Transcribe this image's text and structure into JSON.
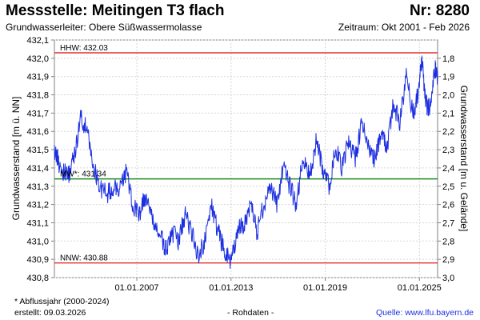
{
  "header": {
    "title": "Messstelle: Meitingen T3 flach",
    "station_number": "Nr: 8280",
    "aquifer": "Grundwasserleiter:   Obere Süßwassermolasse",
    "period": "Zeitraum: Okt 2001 - Feb 2026"
  },
  "footer": {
    "note": "* Abflussjahr (2000-2024)",
    "created": "erstellt:  09.03.2026",
    "data_kind": "- Rohdaten -",
    "source": "Quelle: www.lfu.bayern.de"
  },
  "chart_data": {
    "type": "line",
    "title": "",
    "xlabel": "",
    "ylabel": "Grundwasserstand [m ü. NN]",
    "ylabel_right": "Grundwasserstand [m u. Gelände]",
    "xlim": [
      "2001-10-01",
      "2026-02-28"
    ],
    "ylim": [
      430.8,
      432.1
    ],
    "ylim_right": [
      3.0,
      1.7
    ],
    "y_ticks": [
      "432,1",
      "432,0",
      "431,9",
      "431,8",
      "431,7",
      "431,6",
      "431,5",
      "431,4",
      "431,3",
      "431,2",
      "431,1",
      "431,0",
      "430,9",
      "430,8"
    ],
    "y_ticks_right": [
      "1,8",
      "1,9",
      "2,0",
      "2,1",
      "2,2",
      "2,3",
      "2,4",
      "2,5",
      "2,6",
      "2,7",
      "2,8",
      "2,9",
      "3,0"
    ],
    "x_ticks": [
      "01.01.2007",
      "01.01.2013",
      "01.01.2019",
      "01.01.2025"
    ],
    "grid": true,
    "reference_lines": [
      {
        "label": "HHW: 432.03",
        "value": 432.03,
        "color": "#e03030"
      },
      {
        "label": "MW*: 431.34",
        "value": 431.34,
        "color": "#1f8a1f"
      },
      {
        "label": "NNW: 430.88",
        "value": 430.88,
        "color": "#e03030"
      }
    ],
    "series": [
      {
        "color": "#1c2fe0",
        "x": [
          "2001-10-01",
          "2002-03-01",
          "2002-08-01",
          "2003-01-01",
          "2003-06-01",
          "2003-11-01",
          "2004-04-01",
          "2004-09-01",
          "2005-02-01",
          "2005-07-01",
          "2005-12-01",
          "2006-05-01",
          "2006-10-01",
          "2007-03-01",
          "2007-08-01",
          "2008-01-01",
          "2008-06-01",
          "2008-11-01",
          "2009-04-01",
          "2009-09-01",
          "2010-02-01",
          "2010-07-01",
          "2010-12-01",
          "2011-05-01",
          "2011-10-01",
          "2012-03-01",
          "2012-08-01",
          "2013-01-01",
          "2013-06-01",
          "2013-11-01",
          "2014-04-01",
          "2014-09-01",
          "2015-02-01",
          "2015-07-01",
          "2015-12-01",
          "2016-05-01",
          "2016-10-01",
          "2017-03-01",
          "2017-08-01",
          "2018-01-01",
          "2018-06-01",
          "2018-11-01",
          "2019-04-01",
          "2019-09-01",
          "2020-02-01",
          "2020-07-01",
          "2020-12-01",
          "2021-05-01",
          "2021-10-01",
          "2022-03-01",
          "2022-08-01",
          "2022-12-01",
          "2023-05-01",
          "2023-10-01",
          "2024-03-01",
          "2024-08-01",
          "2024-12-01",
          "2025-03-01",
          "2025-06-01",
          "2025-09-01",
          "2026-01-01",
          "2026-02-28"
        ],
        "values": [
          431.5,
          431.4,
          431.35,
          431.45,
          431.68,
          431.6,
          431.4,
          431.3,
          431.25,
          431.3,
          431.28,
          431.38,
          431.2,
          431.15,
          431.25,
          431.1,
          431.05,
          430.95,
          431.05,
          431.0,
          431.15,
          431.05,
          430.92,
          431.0,
          431.2,
          431.05,
          430.95,
          430.88,
          431.05,
          431.1,
          431.2,
          431.05,
          431.2,
          431.3,
          431.2,
          431.4,
          431.3,
          431.2,
          431.45,
          431.35,
          431.55,
          431.4,
          431.3,
          431.5,
          431.4,
          431.55,
          431.45,
          431.65,
          431.5,
          431.45,
          431.6,
          431.5,
          431.75,
          431.65,
          431.9,
          431.7,
          431.8,
          432.0,
          431.75,
          431.72,
          431.95,
          431.88
        ]
      }
    ]
  }
}
